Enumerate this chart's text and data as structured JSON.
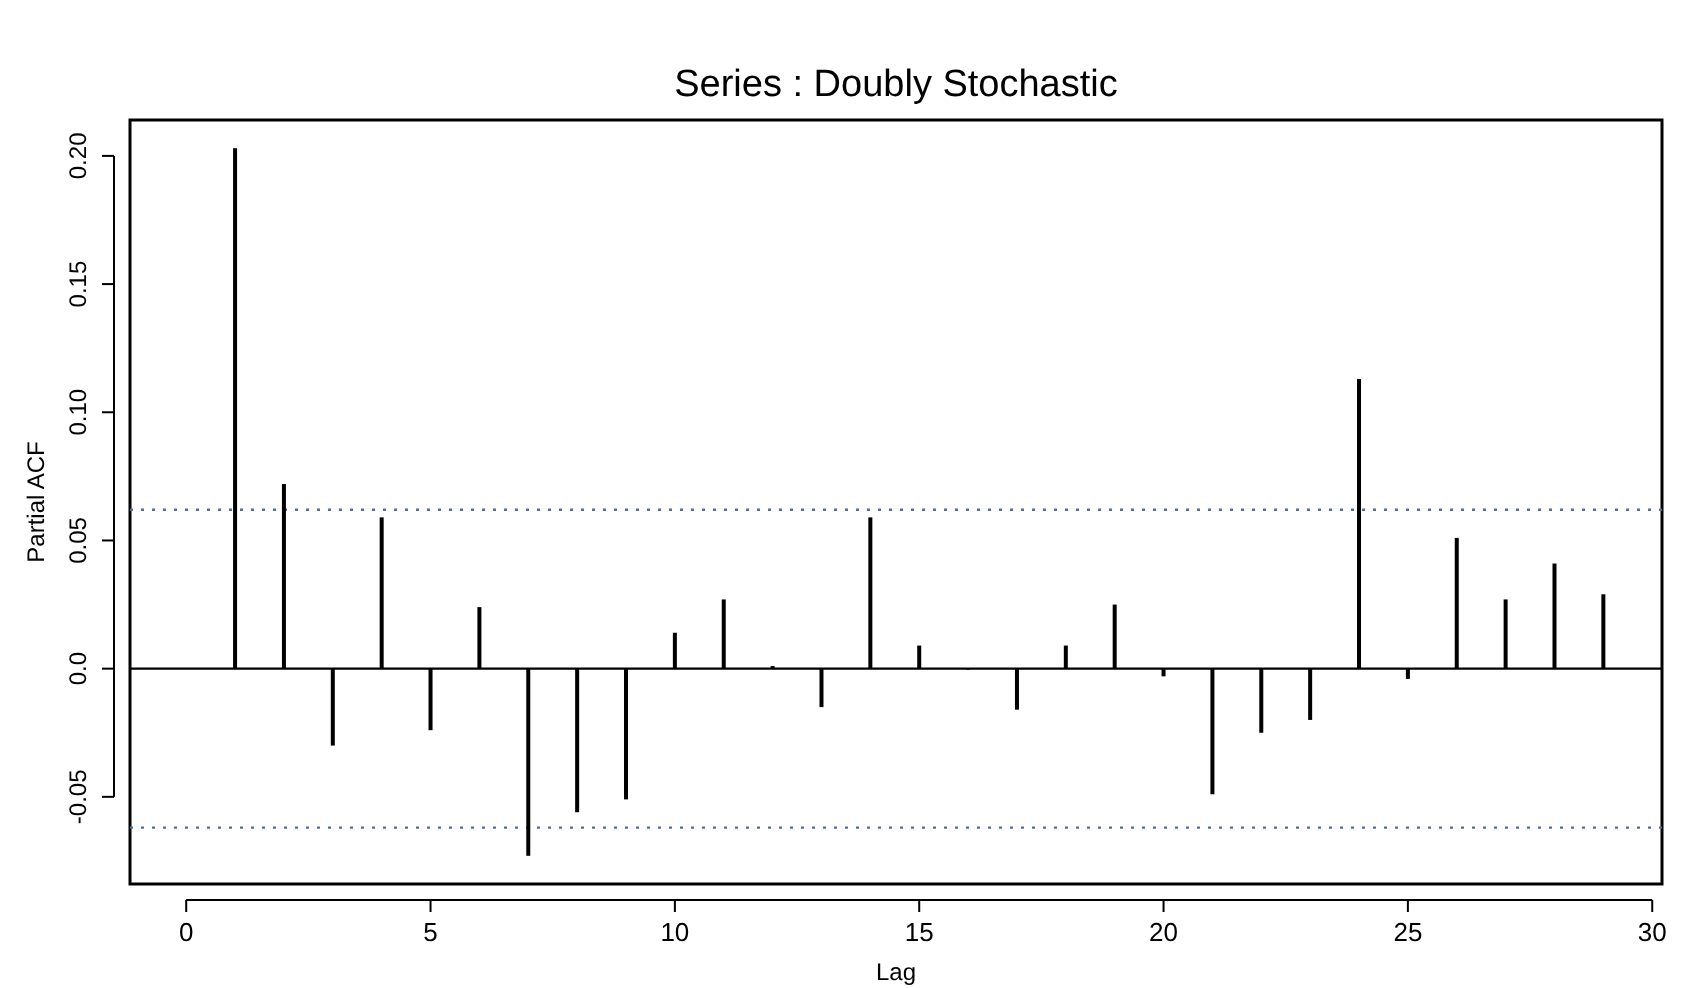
{
  "chart_data": {
    "type": "bar",
    "title": "Series : Doubly Stochastic",
    "xlabel": "Lag",
    "ylabel": "Partial ACF",
    "x": [
      1,
      2,
      3,
      4,
      5,
      6,
      7,
      8,
      9,
      10,
      11,
      12,
      13,
      14,
      15,
      16,
      17,
      18,
      19,
      20,
      21,
      22,
      23,
      24,
      25,
      26,
      27,
      28,
      29
    ],
    "values": [
      0.203,
      0.072,
      -0.03,
      0.059,
      -0.024,
      0.024,
      -0.073,
      -0.056,
      -0.051,
      0.014,
      0.027,
      0.001,
      -0.015,
      0.059,
      0.009,
      0.0,
      -0.016,
      0.009,
      0.025,
      -0.003,
      -0.049,
      -0.025,
      -0.02,
      0.113,
      -0.004,
      0.051,
      0.027,
      0.041,
      0.029
    ],
    "color": "#000000",
    "xlim": [
      -1.15,
      30.2
    ],
    "xticks": [
      0,
      5,
      10,
      15,
      20,
      25,
      30
    ],
    "ylim": [
      -0.084,
      0.214
    ],
    "yticks": [
      {
        "value": -0.05,
        "label": "-0.05"
      },
      {
        "value": 0,
        "label": "0.0"
      },
      {
        "value": 0.05,
        "label": "0.05"
      },
      {
        "value": 0.1,
        "label": "0.10"
      },
      {
        "value": 0.15,
        "label": "0.15"
      },
      {
        "value": 0.2,
        "label": "0.20"
      }
    ],
    "ref_lines": [
      {
        "axis": "y",
        "value": 0.062,
        "color": "#4f6fa0",
        "line_style": "dotted"
      },
      {
        "axis": "y",
        "value": -0.062,
        "color": "#4f6fa0",
        "line_style": "dotted"
      }
    ]
  }
}
